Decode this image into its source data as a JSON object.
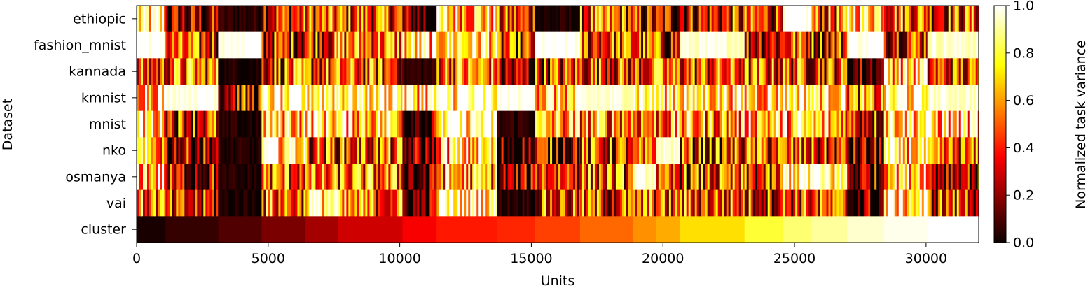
{
  "chart_data": {
    "type": "heatmap",
    "title": "",
    "xlabel": "Units",
    "ylabel": "Dataset",
    "xlim": [
      0,
      32000
    ],
    "xticks": [
      0,
      5000,
      10000,
      15000,
      20000,
      25000,
      30000
    ],
    "rows": [
      "ethiopic",
      "fashion_mnist",
      "kannada",
      "kmnist",
      "mnist",
      "nko",
      "osmanya",
      "vai",
      "cluster"
    ],
    "colormap": "hot",
    "colorbar": {
      "label": "Normalized task variance",
      "range": [
        0.0,
        1.0
      ],
      "ticks": [
        "0.0",
        "0.2",
        "0.4",
        "0.6",
        "0.8",
        "1.0"
      ]
    },
    "cluster_boundaries": [
      0,
      1100,
      3100,
      4750,
      6400,
      7650,
      10100,
      11400,
      13700,
      15150,
      16850,
      18850,
      19750,
      20650,
      23100,
      24550,
      25650,
      27000,
      28400,
      30050,
      32000
    ],
    "cluster_values": [
      0.02,
      0.06,
      0.1,
      0.16,
      0.22,
      0.28,
      0.34,
      0.4,
      0.42,
      0.46,
      0.52,
      0.58,
      0.62,
      0.7,
      0.8,
      0.86,
      0.9,
      0.95,
      0.98,
      1.0
    ],
    "block_means": [
      [
        0.75,
        0.2,
        0.05,
        0.4,
        0.45,
        0.45,
        0.1,
        0.7,
        0.38,
        0.02,
        0.45,
        0.3,
        0.3,
        0.35,
        0.4,
        1.0,
        0.45,
        0.8,
        0.55,
        0.45
      ],
      [
        1.0,
        0.4,
        1.0,
        0.35,
        0.45,
        0.55,
        0.75,
        0.8,
        0.35,
        1.0,
        0.45,
        0.4,
        0.35,
        0.95,
        0.35,
        0.45,
        0.4,
        1.0,
        0.45,
        0.95
      ],
      [
        0.4,
        0.5,
        0.02,
        0.45,
        0.45,
        0.45,
        0.05,
        0.55,
        0.2,
        0.4,
        0.45,
        0.45,
        0.45,
        0.45,
        0.45,
        0.45,
        0.45,
        0.1,
        0.75,
        0.4
      ],
      [
        0.8,
        1.0,
        0.3,
        0.85,
        0.9,
        0.9,
        0.8,
        0.9,
        1.0,
        0.7,
        0.95,
        0.9,
        0.85,
        0.8,
        0.75,
        0.9,
        0.85,
        0.5,
        0.85,
        0.95
      ],
      [
        0.75,
        0.4,
        0.02,
        0.75,
        0.8,
        0.75,
        0.1,
        0.9,
        0.05,
        0.6,
        0.6,
        0.55,
        0.55,
        0.6,
        0.7,
        0.7,
        0.65,
        0.4,
        0.8,
        0.7
      ],
      [
        0.6,
        0.25,
        0.02,
        0.85,
        0.45,
        0.45,
        0.1,
        0.7,
        0.1,
        0.3,
        0.4,
        0.35,
        0.95,
        0.4,
        0.45,
        0.4,
        0.35,
        0.15,
        0.75,
        0.4
      ],
      [
        0.7,
        0.25,
        0.02,
        0.5,
        0.45,
        0.5,
        0.1,
        0.6,
        0.15,
        0.45,
        0.45,
        0.95,
        0.3,
        0.4,
        0.35,
        0.9,
        0.85,
        0.2,
        0.8,
        0.3
      ],
      [
        0.5,
        0.3,
        0.02,
        0.5,
        0.9,
        0.5,
        0.1,
        0.9,
        0.05,
        0.4,
        0.4,
        0.45,
        0.4,
        0.45,
        0.4,
        0.45,
        0.4,
        0.1,
        0.8,
        0.4
      ]
    ]
  }
}
